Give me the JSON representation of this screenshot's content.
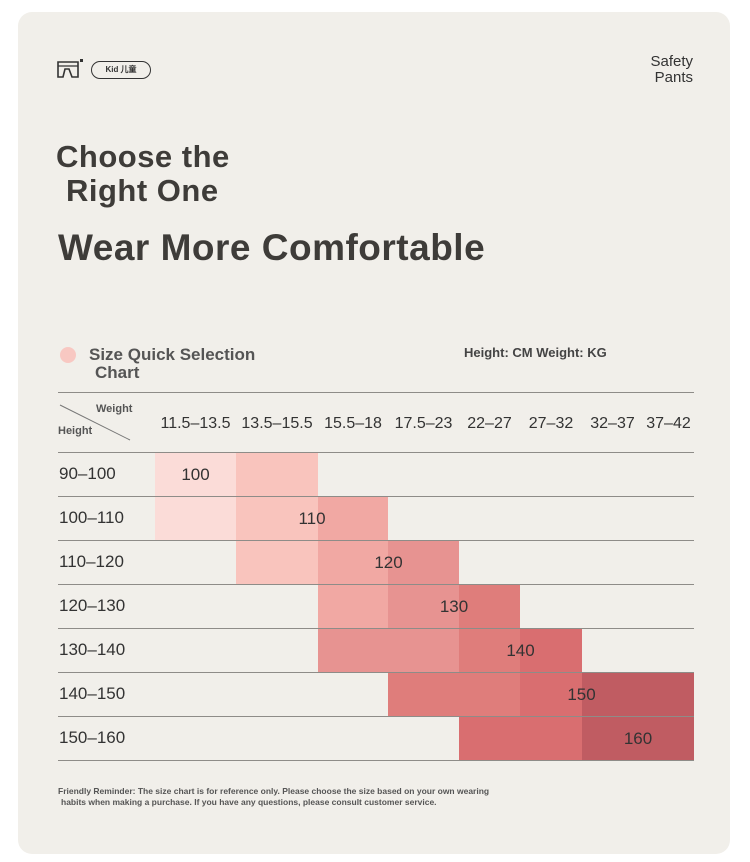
{
  "header": {
    "badge": "Kid 儿童",
    "safety_line1": "Safety",
    "safety_line2": "Pants"
  },
  "headline": {
    "line1": "Choose the",
    "line2": "Right One",
    "line3": "Wear More Comfortable"
  },
  "chart": {
    "title_line1": "Size Quick Selection",
    "title_line2": "Chart",
    "units": "Height: CM Weight: KG",
    "corner_weight": "Weight",
    "corner_height": "Height",
    "weight_columns": [
      "11.5–13.5",
      "13.5–15.5",
      "15.5–18",
      "17.5–23",
      "22–27",
      "27–32",
      "32–37",
      "37–42"
    ],
    "height_rows": [
      "90–100",
      "100–110",
      "110–120",
      "120–130",
      "130–140",
      "140–150",
      "150–160"
    ],
    "sizes": [
      "100",
      "110",
      "120",
      "130",
      "140",
      "150",
      "160"
    ],
    "colors": [
      "#fbdcd8",
      "#f9c4bd",
      "#f1a8a3",
      "#e79391",
      "#df7d7b",
      "#d96e70",
      "#c05c62"
    ]
  },
  "reminder": {
    "line1": "Friendly Reminder: The size chart is for reference only. Please choose the size based on your own wearing",
    "line2": "habits when making a purchase. If you have any questions, please consult customer service."
  }
}
